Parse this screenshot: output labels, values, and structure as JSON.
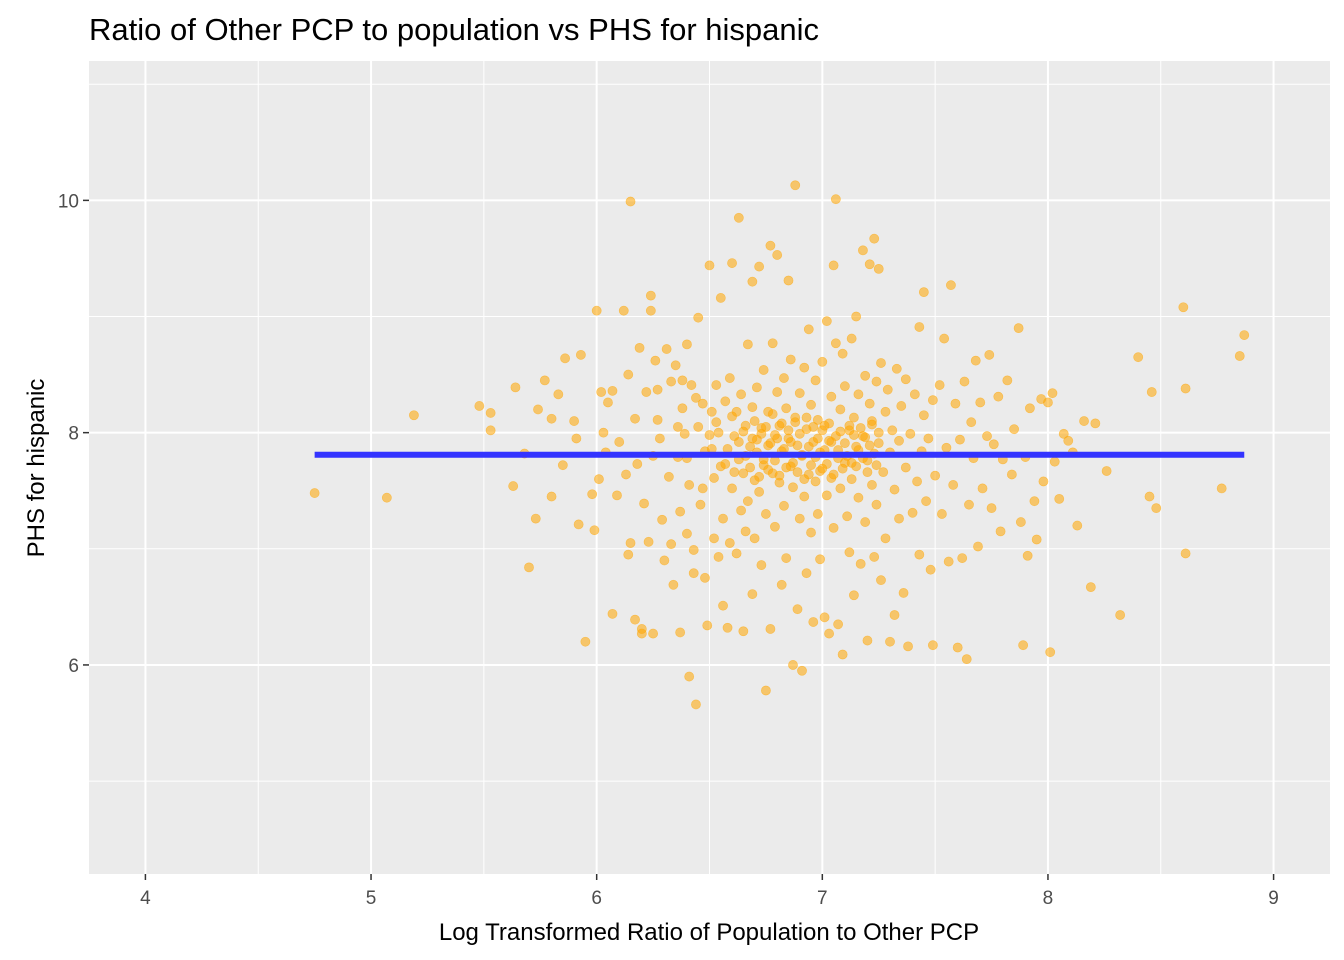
{
  "chart_data": {
    "type": "scatter",
    "title": "Ratio of Other PCP to population vs PHS for hispanic",
    "xlabel": "Log Transformed Ratio of Population to Other PCP",
    "ylabel": "PHS for hispanic",
    "xlim": [
      3.75,
      9.25
    ],
    "ylim": [
      4.2,
      11.2
    ],
    "x_ticks": [
      4,
      5,
      6,
      7,
      8,
      9
    ],
    "x_tick_labels": [
      "4",
      "5",
      "6",
      "7",
      "8",
      "9"
    ],
    "y_ticks": [
      6,
      8,
      10
    ],
    "y_tick_labels": [
      "6",
      "8",
      "10"
    ],
    "grid": true,
    "point_color": "#FFA500",
    "point_opacity": 0.55,
    "line_color": "#3333FF",
    "background": "#EBEBEB",
    "grid_color": "#FFFFFF",
    "fit_line": {
      "x": [
        4.75,
        8.87
      ],
      "y": [
        7.81,
        7.81
      ]
    },
    "points": [
      [
        4.75,
        7.48
      ],
      [
        5.07,
        7.44
      ],
      [
        5.19,
        8.15
      ],
      [
        5.48,
        8.23
      ],
      [
        5.53,
        8.17
      ],
      [
        5.53,
        8.02
      ],
      [
        5.63,
        7.54
      ],
      [
        5.64,
        8.39
      ],
      [
        5.68,
        7.82
      ],
      [
        5.7,
        6.84
      ],
      [
        5.73,
        7.26
      ],
      [
        5.74,
        8.2
      ],
      [
        5.77,
        8.45
      ],
      [
        5.8,
        7.45
      ],
      [
        5.8,
        8.12
      ],
      [
        5.83,
        8.33
      ],
      [
        5.85,
        7.72
      ],
      [
        5.86,
        8.64
      ],
      [
        5.9,
        8.1
      ],
      [
        5.91,
        7.95
      ],
      [
        5.92,
        7.21
      ],
      [
        5.93,
        8.67
      ],
      [
        5.95,
        6.2
      ],
      [
        5.98,
        7.47
      ],
      [
        5.99,
        7.16
      ],
      [
        6.0,
        9.05
      ],
      [
        6.01,
        7.6
      ],
      [
        6.02,
        8.35
      ],
      [
        6.03,
        8.0
      ],
      [
        6.04,
        7.83
      ],
      [
        6.05,
        8.26
      ],
      [
        6.07,
        8.36
      ],
      [
        6.07,
        6.44
      ],
      [
        6.09,
        7.46
      ],
      [
        6.1,
        7.92
      ],
      [
        6.12,
        9.05
      ],
      [
        6.13,
        7.64
      ],
      [
        6.14,
        8.5
      ],
      [
        6.14,
        6.95
      ],
      [
        6.15,
        9.99
      ],
      [
        6.15,
        7.05
      ],
      [
        6.17,
        6.39
      ],
      [
        6.17,
        8.12
      ],
      [
        6.18,
        7.73
      ],
      [
        6.19,
        8.73
      ],
      [
        6.2,
        6.27
      ],
      [
        6.2,
        6.31
      ],
      [
        6.21,
        7.39
      ],
      [
        6.22,
        8.35
      ],
      [
        6.23,
        7.06
      ],
      [
        6.24,
        9.18
      ],
      [
        6.24,
        9.05
      ],
      [
        6.25,
        6.27
      ],
      [
        6.25,
        7.8
      ],
      [
        6.26,
        8.62
      ],
      [
        6.27,
        8.37
      ],
      [
        6.27,
        8.11
      ],
      [
        6.28,
        7.95
      ],
      [
        6.29,
        7.25
      ],
      [
        6.3,
        6.9
      ],
      [
        6.31,
        8.72
      ],
      [
        6.32,
        7.62
      ],
      [
        6.33,
        8.44
      ],
      [
        6.33,
        7.04
      ],
      [
        6.34,
        6.69
      ],
      [
        6.35,
        8.58
      ],
      [
        6.36,
        7.79
      ],
      [
        6.37,
        7.32
      ],
      [
        6.37,
        6.28
      ],
      [
        6.38,
        8.45
      ],
      [
        6.38,
        8.21
      ],
      [
        6.39,
        7.99
      ],
      [
        6.4,
        8.76
      ],
      [
        6.4,
        7.13
      ],
      [
        6.41,
        5.9
      ],
      [
        6.41,
        7.55
      ],
      [
        6.42,
        8.41
      ],
      [
        6.43,
        6.99
      ],
      [
        6.43,
        6.79
      ],
      [
        6.44,
        5.66
      ],
      [
        6.45,
        8.99
      ],
      [
        6.45,
        8.05
      ],
      [
        6.46,
        7.38
      ],
      [
        6.47,
        8.25
      ],
      [
        6.48,
        7.84
      ],
      [
        6.48,
        6.75
      ],
      [
        6.49,
        6.34
      ],
      [
        6.5,
        9.44
      ],
      [
        6.5,
        7.98
      ],
      [
        6.51,
        8.18
      ],
      [
        6.52,
        7.09
      ],
      [
        6.52,
        7.61
      ],
      [
        6.53,
        8.41
      ],
      [
        6.53,
        8.09
      ],
      [
        6.54,
        6.93
      ],
      [
        6.55,
        7.71
      ],
      [
        6.55,
        9.16
      ],
      [
        6.56,
        6.51
      ],
      [
        6.56,
        7.26
      ],
      [
        6.57,
        8.27
      ],
      [
        6.58,
        7.86
      ],
      [
        6.58,
        6.32
      ],
      [
        6.59,
        7.05
      ],
      [
        6.59,
        8.47
      ],
      [
        6.6,
        9.46
      ],
      [
        6.6,
        7.52
      ],
      [
        6.61,
        7.97
      ],
      [
        6.62,
        8.18
      ],
      [
        6.62,
        6.96
      ],
      [
        6.63,
        9.85
      ],
      [
        6.63,
        7.77
      ],
      [
        6.64,
        7.33
      ],
      [
        6.64,
        8.33
      ],
      [
        6.65,
        6.29
      ],
      [
        6.65,
        7.65
      ],
      [
        6.66,
        8.06
      ],
      [
        6.66,
        7.15
      ],
      [
        6.67,
        8.76
      ],
      [
        6.67,
        7.41
      ],
      [
        6.68,
        7.88
      ],
      [
        6.69,
        9.3
      ],
      [
        6.69,
        8.22
      ],
      [
        6.69,
        6.61
      ],
      [
        6.7,
        7.59
      ],
      [
        6.7,
        7.09
      ],
      [
        6.71,
        8.39
      ],
      [
        6.71,
        7.94
      ],
      [
        6.72,
        7.49
      ],
      [
        6.72,
        9.43
      ],
      [
        6.73,
        8.04
      ],
      [
        6.73,
        6.86
      ],
      [
        6.74,
        7.72
      ],
      [
        6.74,
        8.54
      ],
      [
        6.75,
        7.3
      ],
      [
        6.75,
        5.78
      ],
      [
        6.76,
        7.89
      ],
      [
        6.76,
        8.18
      ],
      [
        6.77,
        6.31
      ],
      [
        6.77,
        9.61
      ],
      [
        6.78,
        7.65
      ],
      [
        6.78,
        8.77
      ],
      [
        6.79,
        7.98
      ],
      [
        6.79,
        7.19
      ],
      [
        6.8,
        8.35
      ],
      [
        6.8,
        9.53
      ],
      [
        6.81,
        7.57
      ],
      [
        6.81,
        8.06
      ],
      [
        6.82,
        6.69
      ],
      [
        6.82,
        7.84
      ],
      [
        6.83,
        8.47
      ],
      [
        6.83,
        7.37
      ],
      [
        6.84,
        8.21
      ],
      [
        6.84,
        6.92
      ],
      [
        6.85,
        7.95
      ],
      [
        6.85,
        9.31
      ],
      [
        6.86,
        7.71
      ],
      [
        6.86,
        8.63
      ],
      [
        6.87,
        6.0
      ],
      [
        6.87,
        7.53
      ],
      [
        6.88,
        8.13
      ],
      [
        6.88,
        10.13
      ],
      [
        6.89,
        7.89
      ],
      [
        6.89,
        6.48
      ],
      [
        6.9,
        8.34
      ],
      [
        6.9,
        7.26
      ],
      [
        6.91,
        7.8
      ],
      [
        6.91,
        5.95
      ],
      [
        6.92,
        8.56
      ],
      [
        6.92,
        7.45
      ],
      [
        6.93,
        8.03
      ],
      [
        6.93,
        6.79
      ],
      [
        6.94,
        7.64
      ],
      [
        6.94,
        8.89
      ],
      [
        6.95,
        8.24
      ],
      [
        6.95,
        7.14
      ],
      [
        6.96,
        7.92
      ],
      [
        6.96,
        6.37
      ],
      [
        6.97,
        8.45
      ],
      [
        6.97,
        7.58
      ],
      [
        6.98,
        8.11
      ],
      [
        6.98,
        7.3
      ],
      [
        6.99,
        7.83
      ],
      [
        6.99,
        6.91
      ],
      [
        7.0,
        8.61
      ],
      [
        7.0,
        7.69
      ],
      [
        7.01,
        8.06
      ],
      [
        7.01,
        6.41
      ],
      [
        7.02,
        7.46
      ],
      [
        7.02,
        8.96
      ],
      [
        7.03,
        7.93
      ],
      [
        7.03,
        6.27
      ],
      [
        7.04,
        8.31
      ],
      [
        7.04,
        7.61
      ],
      [
        7.05,
        9.44
      ],
      [
        7.05,
        7.18
      ],
      [
        7.06,
        8.77
      ],
      [
        7.06,
        10.01
      ],
      [
        7.07,
        7.85
      ],
      [
        7.07,
        6.35
      ],
      [
        7.08,
        8.2
      ],
      [
        7.08,
        7.52
      ],
      [
        7.09,
        8.68
      ],
      [
        7.09,
        6.09
      ],
      [
        7.1,
        7.74
      ],
      [
        7.1,
        8.4
      ],
      [
        7.11,
        7.28
      ],
      [
        7.12,
        8.02
      ],
      [
        7.12,
        6.97
      ],
      [
        7.13,
        8.81
      ],
      [
        7.13,
        7.6
      ],
      [
        7.14,
        8.13
      ],
      [
        7.14,
        6.6
      ],
      [
        7.15,
        7.88
      ],
      [
        7.15,
        9.0
      ],
      [
        7.16,
        7.44
      ],
      [
        7.16,
        8.33
      ],
      [
        7.17,
        6.87
      ],
      [
        7.18,
        7.97
      ],
      [
        7.18,
        9.57
      ],
      [
        7.19,
        8.49
      ],
      [
        7.19,
        7.23
      ],
      [
        7.2,
        7.76
      ],
      [
        7.2,
        6.21
      ],
      [
        7.21,
        8.25
      ],
      [
        7.21,
        9.45
      ],
      [
        7.22,
        7.55
      ],
      [
        7.22,
        8.07
      ],
      [
        7.23,
        6.93
      ],
      [
        7.23,
        9.67
      ],
      [
        7.24,
        8.44
      ],
      [
        7.24,
        7.38
      ],
      [
        7.25,
        7.91
      ],
      [
        7.25,
        9.41
      ],
      [
        7.26,
        8.6
      ],
      [
        7.26,
        6.73
      ],
      [
        7.27,
        7.66
      ],
      [
        7.28,
        8.18
      ],
      [
        7.28,
        7.09
      ],
      [
        7.29,
        8.37
      ],
      [
        7.3,
        7.83
      ],
      [
        7.3,
        6.2
      ],
      [
        7.31,
        8.02
      ],
      [
        7.32,
        7.51
      ],
      [
        7.32,
        6.43
      ],
      [
        7.33,
        8.55
      ],
      [
        7.34,
        7.26
      ],
      [
        7.34,
        7.93
      ],
      [
        7.35,
        8.23
      ],
      [
        7.36,
        6.62
      ],
      [
        7.37,
        7.7
      ],
      [
        7.37,
        8.46
      ],
      [
        7.38,
        6.16
      ],
      [
        7.39,
        7.99
      ],
      [
        7.4,
        7.31
      ],
      [
        7.41,
        8.33
      ],
      [
        7.42,
        7.58
      ],
      [
        7.43,
        8.91
      ],
      [
        7.43,
        6.95
      ],
      [
        7.44,
        7.84
      ],
      [
        7.45,
        9.21
      ],
      [
        7.45,
        8.15
      ],
      [
        7.46,
        7.41
      ],
      [
        7.47,
        7.95
      ],
      [
        7.48,
        6.82
      ],
      [
        7.49,
        8.28
      ],
      [
        7.49,
        6.17
      ],
      [
        7.5,
        7.63
      ],
      [
        7.52,
        8.41
      ],
      [
        7.53,
        7.3
      ],
      [
        7.54,
        8.81
      ],
      [
        7.55,
        7.87
      ],
      [
        7.56,
        6.89
      ],
      [
        7.57,
        9.27
      ],
      [
        7.58,
        7.55
      ],
      [
        7.59,
        8.25
      ],
      [
        7.6,
        6.15
      ],
      [
        7.61,
        7.94
      ],
      [
        7.62,
        6.92
      ],
      [
        7.63,
        8.44
      ],
      [
        7.64,
        6.05
      ],
      [
        7.65,
        7.38
      ],
      [
        7.66,
        8.09
      ],
      [
        7.67,
        7.78
      ],
      [
        7.68,
        8.62
      ],
      [
        7.69,
        7.02
      ],
      [
        7.7,
        8.26
      ],
      [
        7.71,
        7.52
      ],
      [
        7.73,
        7.97
      ],
      [
        7.74,
        8.67
      ],
      [
        7.75,
        7.35
      ],
      [
        7.76,
        7.9
      ],
      [
        7.78,
        8.31
      ],
      [
        7.79,
        7.15
      ],
      [
        7.8,
        7.77
      ],
      [
        7.82,
        8.45
      ],
      [
        7.84,
        7.64
      ],
      [
        7.85,
        8.03
      ],
      [
        7.87,
        8.9
      ],
      [
        7.88,
        7.23
      ],
      [
        7.89,
        6.17
      ],
      [
        7.9,
        7.79
      ],
      [
        7.91,
        6.94
      ],
      [
        7.92,
        8.21
      ],
      [
        7.94,
        7.41
      ],
      [
        7.95,
        7.08
      ],
      [
        7.97,
        8.29
      ],
      [
        7.98,
        7.58
      ],
      [
        8.0,
        8.26
      ],
      [
        8.01,
        6.11
      ],
      [
        8.02,
        8.34
      ],
      [
        8.03,
        7.75
      ],
      [
        8.05,
        7.43
      ],
      [
        8.07,
        7.99
      ],
      [
        8.09,
        7.93
      ],
      [
        8.11,
        7.83
      ],
      [
        8.13,
        7.2
      ],
      [
        8.16,
        8.1
      ],
      [
        8.19,
        6.67
      ],
      [
        8.21,
        8.08
      ],
      [
        8.26,
        7.67
      ],
      [
        8.32,
        6.43
      ],
      [
        8.4,
        8.65
      ],
      [
        8.45,
        7.45
      ],
      [
        8.46,
        8.35
      ],
      [
        8.48,
        7.35
      ],
      [
        8.6,
        9.08
      ],
      [
        8.61,
        6.96
      ],
      [
        8.61,
        8.38
      ],
      [
        8.77,
        7.52
      ],
      [
        8.85,
        8.66
      ],
      [
        8.87,
        8.84
      ],
      [
        6.36,
        8.05
      ],
      [
        6.4,
        7.78
      ],
      [
        6.44,
        8.3
      ],
      [
        6.47,
        7.52
      ],
      [
        6.51,
        7.86
      ],
      [
        6.54,
        8.0
      ],
      [
        6.57,
        7.73
      ],
      [
        6.6,
        8.14
      ],
      [
        6.61,
        7.66
      ],
      [
        6.63,
        7.92
      ],
      [
        6.65,
        8.01
      ],
      [
        6.66,
        7.8
      ],
      [
        6.68,
        7.7
      ],
      [
        6.69,
        7.95
      ],
      [
        6.7,
        8.1
      ],
      [
        6.71,
        7.83
      ],
      [
        6.72,
        7.62
      ],
      [
        6.73,
        7.99
      ],
      [
        6.74,
        7.77
      ],
      [
        6.75,
        8.05
      ],
      [
        6.76,
        7.68
      ],
      [
        6.77,
        7.91
      ],
      [
        6.78,
        8.16
      ],
      [
        6.79,
        7.76
      ],
      [
        6.8,
        7.95
      ],
      [
        6.81,
        7.63
      ],
      [
        6.82,
        8.08
      ],
      [
        6.83,
        7.86
      ],
      [
        6.84,
        7.7
      ],
      [
        6.85,
        8.02
      ],
      [
        6.86,
        7.92
      ],
      [
        6.87,
        7.74
      ],
      [
        6.88,
        8.09
      ],
      [
        6.89,
        7.66
      ],
      [
        6.9,
        7.99
      ],
      [
        6.91,
        7.81
      ],
      [
        6.92,
        7.6
      ],
      [
        6.93,
        8.13
      ],
      [
        6.94,
        7.88
      ],
      [
        6.95,
        7.72
      ],
      [
        6.96,
        8.05
      ],
      [
        6.97,
        7.79
      ],
      [
        6.98,
        7.95
      ],
      [
        6.99,
        7.67
      ],
      [
        7.0,
        8.02
      ],
      [
        7.01,
        7.85
      ],
      [
        7.02,
        7.73
      ],
      [
        7.03,
        8.08
      ],
      [
        7.04,
        7.92
      ],
      [
        7.05,
        7.64
      ],
      [
        7.06,
        7.97
      ],
      [
        7.07,
        7.78
      ],
      [
        7.08,
        8.01
      ],
      [
        7.09,
        7.69
      ],
      [
        7.1,
        7.91
      ],
      [
        7.11,
        7.8
      ],
      [
        7.12,
        8.06
      ],
      [
        7.13,
        7.74
      ],
      [
        7.14,
        7.98
      ],
      [
        7.15,
        7.71
      ],
      [
        7.16,
        7.85
      ],
      [
        7.17,
        8.04
      ],
      [
        7.18,
        7.78
      ],
      [
        7.19,
        7.96
      ],
      [
        7.2,
        7.66
      ],
      [
        7.21,
        7.89
      ],
      [
        7.22,
        8.1
      ],
      [
        7.23,
        7.82
      ],
      [
        7.24,
        7.72
      ],
      [
        7.25,
        8.0
      ]
    ]
  }
}
